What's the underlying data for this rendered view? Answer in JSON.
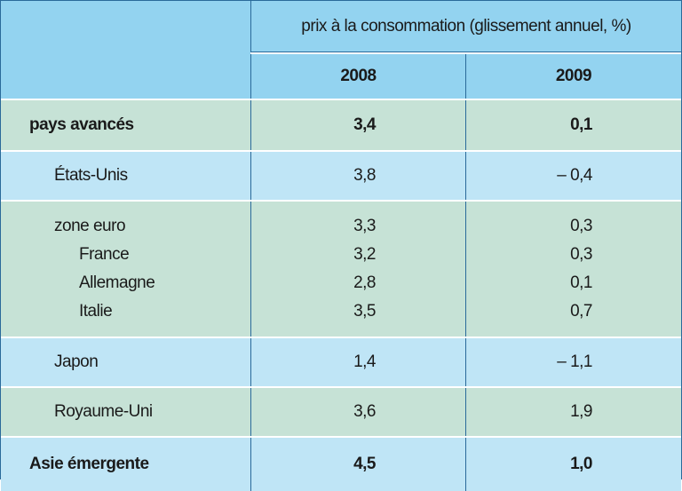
{
  "header": {
    "span_label": "prix à la consommation (glissement annuel, %)",
    "years": [
      "2008",
      "2009"
    ]
  },
  "rows": {
    "pays_avances": {
      "label": "pays avancés",
      "v2008": "3,4",
      "v2009": "0,1"
    },
    "etats_unis": {
      "label": "États-Unis",
      "v2008": "3,8",
      "v2009": "– 0,4"
    },
    "zone_euro": {
      "label": "zone euro",
      "v2008": "3,3",
      "v2009": "0,3"
    },
    "france": {
      "label": "France",
      "v2008": "3,2",
      "v2009": "0,3"
    },
    "allemagne": {
      "label": "Allemagne",
      "v2008": "2,8",
      "v2009": "0,1"
    },
    "italie": {
      "label": "Italie",
      "v2008": "3,5",
      "v2009": "0,7"
    },
    "japon": {
      "label": "Japon",
      "v2008": "1,4",
      "v2009": "– 1,1"
    },
    "royaume_uni": {
      "label": "Royaume-Uni",
      "v2008": "3,6",
      "v2009": "1,9"
    },
    "asie_emergente": {
      "label": "Asie émergente",
      "v2008": "4,5",
      "v2009": "1,0"
    }
  },
  "colors": {
    "header": "#93d3f0",
    "green_row": "#c6e2d6",
    "blue_row": "#bfe5f6",
    "rule": "#2a6a9a"
  }
}
